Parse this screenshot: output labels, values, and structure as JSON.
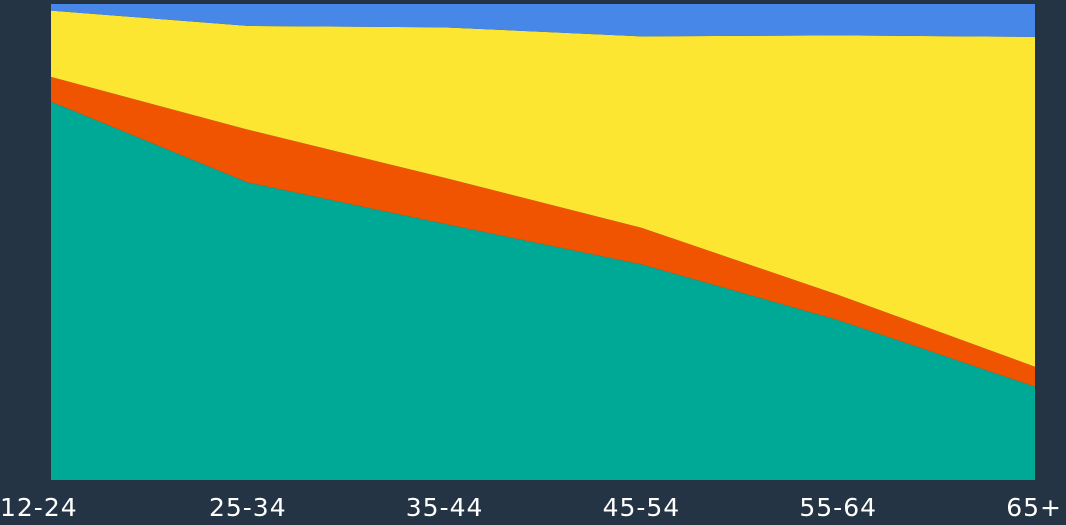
{
  "chart_data": {
    "type": "area",
    "stacking": "percent",
    "categories": [
      "12-24",
      "25-34",
      "35-44",
      "45-54",
      "55-64",
      "65+"
    ],
    "ylim": [
      0,
      100
    ],
    "grid": false,
    "legend": "none",
    "background": "#253445",
    "series": [
      {
        "color": "#00a896",
        "values": [
          79.5,
          62.5,
          53.8,
          45.3,
          33.6,
          19.6
        ]
      },
      {
        "color": "#f05400",
        "values": [
          5.2,
          11.1,
          9.7,
          7.7,
          5.3,
          4.2
        ]
      },
      {
        "color": "#fce631",
        "values": [
          13.9,
          21.8,
          31.6,
          40.2,
          54.5,
          69.3
        ]
      },
      {
        "color": "#4787e8",
        "values": [
          1.4,
          4.6,
          4.9,
          6.8,
          6.6,
          6.9
        ]
      }
    ]
  }
}
